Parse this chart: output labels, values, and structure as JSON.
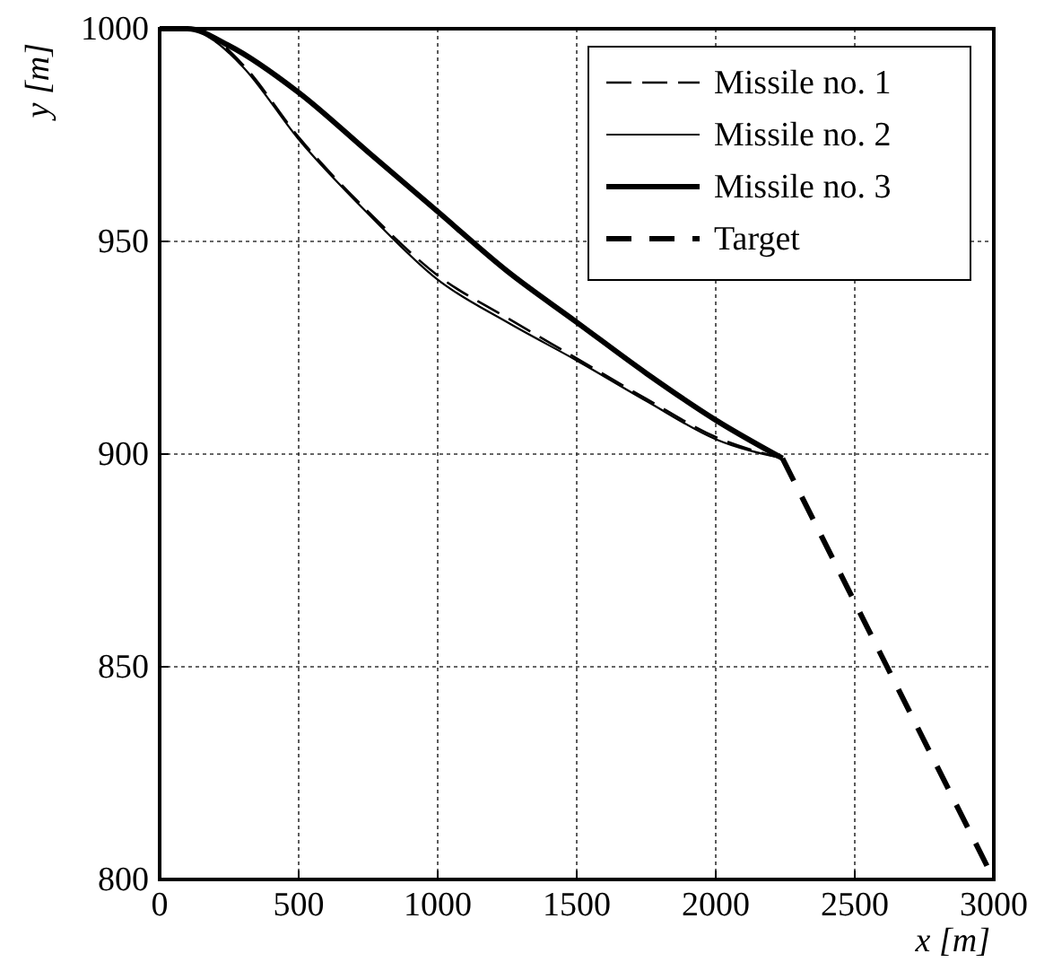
{
  "chart_data": {
    "type": "line",
    "xlabel": "x [m]",
    "ylabel": "y [m]",
    "xlim": [
      0,
      3000
    ],
    "ylim": [
      800,
      1000
    ],
    "xticks": [
      0,
      500,
      1000,
      1500,
      2000,
      2500,
      3000
    ],
    "yticks": [
      800,
      850,
      900,
      950,
      1000
    ],
    "grid": true,
    "legend": "top right",
    "marker": "none",
    "series": [
      {
        "name": "Missile no. 1",
        "color": "#000000",
        "line_style": "dashed",
        "x": [
          0,
          100,
          200,
          300,
          500,
          750,
          1000,
          1250,
          1500,
          1750,
          2000,
          2240
        ],
        "values": [
          1000,
          1000,
          997.5,
          991.5,
          974.5,
          957,
          942,
          932,
          922.5,
          913,
          904,
          899
        ]
      },
      {
        "name": "Missile no. 2",
        "color": "#000000",
        "line_style": "solid",
        "x": [
          0,
          100,
          200,
          300,
          500,
          750,
          1000,
          1250,
          1500,
          1750,
          2000,
          2240
        ],
        "values": [
          1000,
          1000,
          997,
          991,
          974,
          956.5,
          941,
          931,
          922,
          912.5,
          903.5,
          899
        ]
      },
      {
        "name": "Missile no. 3",
        "color": "#000000",
        "line_style": "solid",
        "x": [
          0,
          100,
          250,
          500,
          750,
          1000,
          1250,
          1500,
          1750,
          2000,
          2240
        ],
        "values": [
          1000,
          1000,
          996,
          985,
          971,
          957,
          943,
          931,
          919,
          908,
          899
        ]
      },
      {
        "name": "Target",
        "color": "#000000",
        "line_style": "dashed",
        "x": [
          2240,
          3000
        ],
        "values": [
          899,
          800
        ]
      }
    ]
  }
}
